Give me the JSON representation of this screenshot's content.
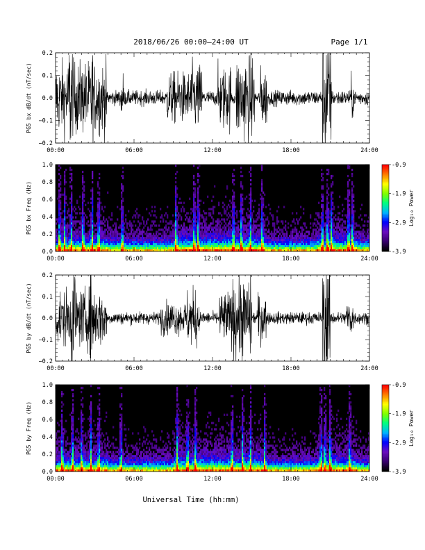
{
  "header": {
    "title": "2018/06/26  00:00–24:00 UT",
    "page": "Page 1/1"
  },
  "colors": {
    "background": "#ffffff",
    "trace": "#000000",
    "spectrogram_background": "#000000"
  },
  "colorbar": {
    "label": "Log₁₀ Power",
    "ticks": [
      "-0.9",
      "-1.9",
      "-2.9",
      "-3.9"
    ],
    "range": [
      -3.9,
      -0.9
    ],
    "palette": [
      "#000000",
      "#3a0070",
      "#6a0dbf",
      "#0000ff",
      "#00b4ff",
      "#00ff80",
      "#80ff00",
      "#ffff00",
      "#ff8000",
      "#ff0000"
    ]
  },
  "x_axis": {
    "title": "Universal Time (hh:mm)",
    "ticks": [
      "00:00",
      "06:00",
      "12:00",
      "18:00",
      "24:00"
    ],
    "range_hours": [
      0,
      24
    ]
  },
  "chart_data": [
    {
      "type": "line",
      "ylabel": "PG5 bx dB/dt (nT/sec)",
      "ylim": [
        -0.2,
        0.2
      ],
      "yticks": [
        "0.2",
        "0.1",
        "0.0",
        "−0.1",
        "−0.2"
      ],
      "x_range_hours": [
        0,
        24
      ],
      "activity_bursts": [
        {
          "start_h": 0.0,
          "end_h": 3.9,
          "amplitude": 0.17
        },
        {
          "start_h": 1.0,
          "end_h": 1.3,
          "amplitude": 0.3
        },
        {
          "start_h": 2.7,
          "end_h": 2.9,
          "amplitude": 0.25
        },
        {
          "start_h": 5.0,
          "end_h": 5.2,
          "amplitude": 0.12
        },
        {
          "start_h": 8.5,
          "end_h": 10.2,
          "amplitude": 0.12
        },
        {
          "start_h": 10.2,
          "end_h": 11.2,
          "amplitude": 0.16
        },
        {
          "start_h": 12.4,
          "end_h": 13.4,
          "amplitude": 0.15
        },
        {
          "start_h": 13.8,
          "end_h": 15.2,
          "amplitude": 0.2
        },
        {
          "start_h": 15.6,
          "end_h": 16.2,
          "amplitude": 0.14
        },
        {
          "start_h": 20.4,
          "end_h": 21.1,
          "amplitude": 0.3
        },
        {
          "start_h": 22.6,
          "end_h": 22.8,
          "amplitude": 0.1
        }
      ],
      "baseline_amplitude": 0.035
    },
    {
      "type": "heatmap",
      "ylabel": "PG5 bx Freq (Hz)",
      "ylim": [
        0.0,
        1.0
      ],
      "yticks": [
        "1.0",
        "0.8",
        "0.6",
        "0.4",
        "0.2",
        "0.0"
      ],
      "x_range_hours": [
        0,
        24
      ],
      "value_range": [
        -3.9,
        -0.9
      ],
      "bright_bands_h": [
        0.3,
        0.7,
        1.2,
        2.1,
        2.8,
        3.3,
        5.1,
        9.2,
        10.6,
        10.9,
        13.6,
        14.2,
        14.9,
        15.8,
        20.4,
        20.8,
        21.1,
        22.4,
        22.7
      ]
    },
    {
      "type": "line",
      "ylabel": "PG5 by dB/dt (nT/sec)",
      "ylim": [
        -0.2,
        0.2
      ],
      "yticks": [
        "0.2",
        "0.1",
        "0.0",
        "−0.1",
        "−0.2"
      ],
      "x_range_hours": [
        0,
        24
      ],
      "activity_bursts": [
        {
          "start_h": 0.0,
          "end_h": 3.9,
          "amplitude": 0.14
        },
        {
          "start_h": 1.2,
          "end_h": 1.5,
          "amplitude": 0.28
        },
        {
          "start_h": 2.6,
          "end_h": 2.9,
          "amplitude": 0.24
        },
        {
          "start_h": 8.0,
          "end_h": 10.0,
          "amplitude": 0.08
        },
        {
          "start_h": 10.0,
          "end_h": 11.0,
          "amplitude": 0.14
        },
        {
          "start_h": 12.5,
          "end_h": 13.5,
          "amplitude": 0.13
        },
        {
          "start_h": 13.5,
          "end_h": 15.0,
          "amplitude": 0.2
        },
        {
          "start_h": 15.4,
          "end_h": 16.1,
          "amplitude": 0.12
        },
        {
          "start_h": 20.4,
          "end_h": 21.0,
          "amplitude": 0.3
        },
        {
          "start_h": 22.2,
          "end_h": 22.8,
          "amplitude": 0.09
        }
      ],
      "baseline_amplitude": 0.03
    },
    {
      "type": "heatmap",
      "ylabel": "PG5 by Freq (Hz)",
      "ylim": [
        0.0,
        1.0
      ],
      "yticks": [
        "1.0",
        "0.8",
        "0.6",
        "0.4",
        "0.2",
        "0.0"
      ],
      "x_range_hours": [
        0,
        24
      ],
      "value_range": [
        -3.9,
        -0.9
      ],
      "bright_bands_h": [
        0.5,
        1.3,
        2.0,
        2.7,
        3.3,
        5.0,
        9.3,
        10.1,
        10.7,
        13.5,
        14.3,
        14.9,
        16.0,
        20.3,
        20.6,
        21.0,
        22.5
      ]
    }
  ]
}
